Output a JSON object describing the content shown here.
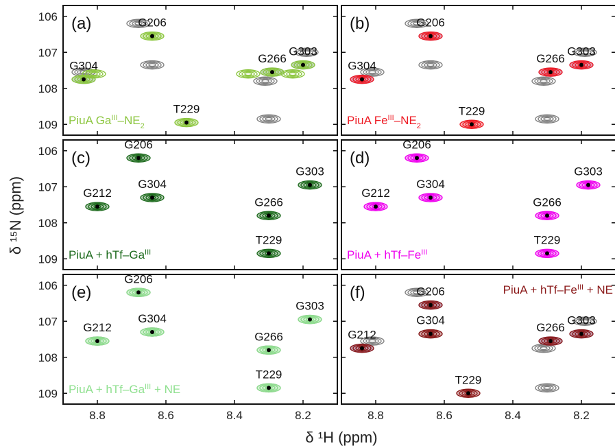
{
  "figure": {
    "ylabel": "δ ¹⁵N (ppm)",
    "xlabel": "δ ¹H (ppm)"
  },
  "chart_data": {
    "type": "scatter",
    "subtype": "2D NMR contour spectra overlay",
    "x_axis": {
      "label": "δ ¹H (ppm)",
      "range": [
        8.9,
        8.1
      ],
      "reversed": true,
      "ticks": [
        8.8,
        8.6,
        8.4,
        8.2
      ]
    },
    "y_axis": {
      "label": "δ ¹⁵N (ppm)",
      "range": [
        105.7,
        109.3
      ],
      "reversed": true,
      "ticks": [
        106,
        107,
        108,
        109
      ]
    },
    "reference_color": "#808080",
    "panels": [
      {
        "id": "a",
        "panel_label": "(a)",
        "annotation": {
          "text": "PiuA Ga^III–NE_2",
          "color": "#8cc63f",
          "position": "bottom-left"
        },
        "reference_peaks": [
          {
            "x": 8.68,
            "y": 106.2
          },
          {
            "x": 8.64,
            "y": 107.35
          },
          {
            "x": 8.84,
            "y": 107.55
          },
          {
            "x": 8.31,
            "y": 107.8
          },
          {
            "x": 8.3,
            "y": 108.85
          },
          {
            "x": 8.19,
            "y": 107.0
          }
        ],
        "blue_peaks": [
          {
            "x": 8.84,
            "y": 107.75
          },
          {
            "x": 8.29,
            "y": 107.55
          },
          {
            "x": 8.2,
            "y": 107.35
          }
        ],
        "sample_color": "#8cc63f",
        "peaks": [
          {
            "label": "G206",
            "x": 8.64,
            "y": 106.55
          },
          {
            "label": "G304",
            "x": 8.84,
            "y": 107.75
          },
          {
            "label": "T229",
            "x": 8.54,
            "y": 108.95
          },
          {
            "label": "G266",
            "x": 8.29,
            "y": 107.55
          },
          {
            "label": "G303",
            "x": 8.2,
            "y": 107.35
          }
        ],
        "extra_sample_blobs": [
          {
            "x": 8.81,
            "y": 107.6
          },
          {
            "x": 8.36,
            "y": 107.6
          },
          {
            "x": 8.23,
            "y": 107.6
          }
        ]
      },
      {
        "id": "b",
        "panel_label": "(b)",
        "annotation": {
          "text": "PiuA Fe^III–NE_2",
          "color": "#ee1c25",
          "position": "bottom-left"
        },
        "reference_peaks": [
          {
            "x": 8.68,
            "y": 106.2
          },
          {
            "x": 8.64,
            "y": 107.35
          },
          {
            "x": 8.81,
            "y": 107.55
          },
          {
            "x": 8.31,
            "y": 107.8
          },
          {
            "x": 8.3,
            "y": 108.85
          },
          {
            "x": 8.19,
            "y": 107.0
          }
        ],
        "blue_peaks": [
          {
            "x": 8.64,
            "y": 106.55
          },
          {
            "x": 8.84,
            "y": 107.75
          },
          {
            "x": 8.29,
            "y": 107.55
          },
          {
            "x": 8.2,
            "y": 107.35
          }
        ],
        "sample_color": "#ee1c25",
        "peaks": [
          {
            "label": "G206",
            "x": 8.64,
            "y": 106.55
          },
          {
            "label": "G304",
            "x": 8.84,
            "y": 107.75
          },
          {
            "label": "T229",
            "x": 8.52,
            "y": 109.0
          },
          {
            "label": "G266",
            "x": 8.29,
            "y": 107.55
          },
          {
            "label": "G303",
            "x": 8.2,
            "y": 107.35
          }
        ],
        "extra_sample_blobs": []
      },
      {
        "id": "c",
        "panel_label": "(c)",
        "annotation": {
          "text": "PiuA + hTf–Ga^III",
          "color": "#1e6b1e",
          "position": "bottom-left"
        },
        "reference_peaks": [],
        "blue_peaks": [],
        "sample_color": "#1e6b1e",
        "peaks": [
          {
            "label": "G206",
            "x": 8.68,
            "y": 106.2
          },
          {
            "label": "G212",
            "x": 8.8,
            "y": 107.55
          },
          {
            "label": "G304",
            "x": 8.64,
            "y": 107.3
          },
          {
            "label": "G266",
            "x": 8.3,
            "y": 107.8
          },
          {
            "label": "T229",
            "x": 8.3,
            "y": 108.85
          },
          {
            "label": "G303",
            "x": 8.18,
            "y": 106.95
          }
        ],
        "extra_sample_blobs": []
      },
      {
        "id": "d",
        "panel_label": "(d)",
        "annotation": {
          "text": "PiuA + hTf–Fe^III",
          "color": "#ee00ee",
          "position": "bottom-left"
        },
        "reference_peaks": [],
        "blue_peaks": [],
        "sample_color": "#ee00ee",
        "peaks": [
          {
            "label": "G206",
            "x": 8.68,
            "y": 106.2
          },
          {
            "label": "G212",
            "x": 8.8,
            "y": 107.55
          },
          {
            "label": "G304",
            "x": 8.64,
            "y": 107.3
          },
          {
            "label": "G266",
            "x": 8.3,
            "y": 107.8
          },
          {
            "label": "T229",
            "x": 8.3,
            "y": 108.85
          },
          {
            "label": "G303",
            "x": 8.18,
            "y": 106.95
          }
        ],
        "extra_sample_blobs": []
      },
      {
        "id": "e",
        "panel_label": "(e)",
        "annotation": {
          "text": "PiuA + hTf–Ga^III + NE",
          "color": "#8fe08f",
          "position": "bottom-left"
        },
        "reference_peaks": [
          {
            "x": 8.68,
            "y": 106.2
          },
          {
            "x": 8.8,
            "y": 107.55
          },
          {
            "x": 8.64,
            "y": 107.3
          },
          {
            "x": 8.3,
            "y": 107.8
          },
          {
            "x": 8.3,
            "y": 108.85
          },
          {
            "x": 8.18,
            "y": 106.95
          }
        ],
        "blue_peaks": [],
        "sample_color": "#8fe08f",
        "peaks": [
          {
            "label": "G206",
            "x": 8.68,
            "y": 106.2
          },
          {
            "label": "G212",
            "x": 8.8,
            "y": 107.55
          },
          {
            "label": "G304",
            "x": 8.64,
            "y": 107.3
          },
          {
            "label": "G266",
            "x": 8.3,
            "y": 107.8
          },
          {
            "label": "T229",
            "x": 8.3,
            "y": 108.85
          },
          {
            "label": "G303",
            "x": 8.18,
            "y": 106.95
          }
        ],
        "extra_sample_blobs": []
      },
      {
        "id": "f",
        "panel_label": "(f)",
        "annotation": {
          "text": "PiuA + hTf–Fe^III + NE",
          "color": "#8b1a1a",
          "position": "top-right"
        },
        "reference_peaks": [
          {
            "x": 8.68,
            "y": 106.2
          },
          {
            "x": 8.64,
            "y": 107.35
          },
          {
            "x": 8.81,
            "y": 107.55
          },
          {
            "x": 8.31,
            "y": 107.75
          },
          {
            "x": 8.3,
            "y": 108.85
          },
          {
            "x": 8.19,
            "y": 107.0
          }
        ],
        "blue_peaks": [
          {
            "x": 8.64,
            "y": 106.55
          },
          {
            "x": 8.84,
            "y": 107.75
          },
          {
            "x": 8.29,
            "y": 107.55
          },
          {
            "x": 8.2,
            "y": 107.35
          }
        ],
        "sample_color": "#8b1a1a",
        "peaks": [
          {
            "label": "G206",
            "x": 8.64,
            "y": 106.55
          },
          {
            "label": "G212",
            "x": 8.84,
            "y": 107.75
          },
          {
            "label": "G304",
            "x": 8.64,
            "y": 107.35
          },
          {
            "label": "G266",
            "x": 8.29,
            "y": 107.55
          },
          {
            "label": "T229",
            "x": 8.53,
            "y": 109.0
          },
          {
            "label": "G303",
            "x": 8.2,
            "y": 107.35
          }
        ],
        "extra_sample_blobs": []
      }
    ],
    "blue_color": "#a5aef0"
  }
}
